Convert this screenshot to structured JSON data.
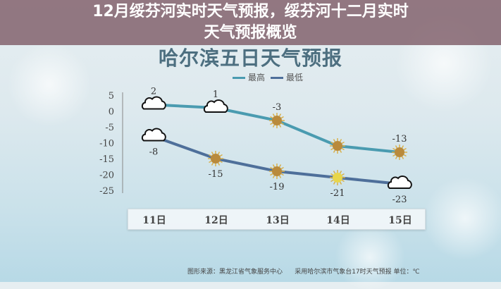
{
  "headline": {
    "line1": "12月绥芬河实时天气预报，绥芬河十二月实时",
    "line2": "天气预报概览"
  },
  "footer": {
    "source": "图形来源：黑龙江省气象服务中心",
    "note": "采用哈尔滨市气象台17时天气预报 单位：℃"
  },
  "chart_data": {
    "type": "line",
    "title": "哈尔滨五日天气预报",
    "categories": [
      "11日",
      "12日",
      "13日",
      "14日",
      "15日"
    ],
    "series": [
      {
        "name": "最高",
        "values": [
          2,
          1,
          -3,
          -11,
          -13
        ],
        "color": "#4a9bb0",
        "labels": [
          "2",
          "1",
          "-3",
          "",
          "-13"
        ]
      },
      {
        "name": "最低",
        "values": [
          -8,
          -15,
          -19,
          -21,
          -23
        ],
        "color": "#4e6f9a",
        "labels": [
          "-8",
          "-15",
          "-19",
          "-21",
          "-23"
        ]
      }
    ],
    "weather_icons": {
      "high": [
        "cloud",
        "cloud",
        "sun",
        "sun",
        "sun"
      ],
      "low": [
        "cloud",
        "sun",
        "sun",
        "sun-bright",
        "cloud"
      ]
    },
    "yticks": [
      "5",
      "0",
      "-5",
      "-10",
      "-15",
      "-20",
      "-25"
    ],
    "ylim": [
      -25,
      5
    ],
    "legend": "top",
    "grid": false
  }
}
